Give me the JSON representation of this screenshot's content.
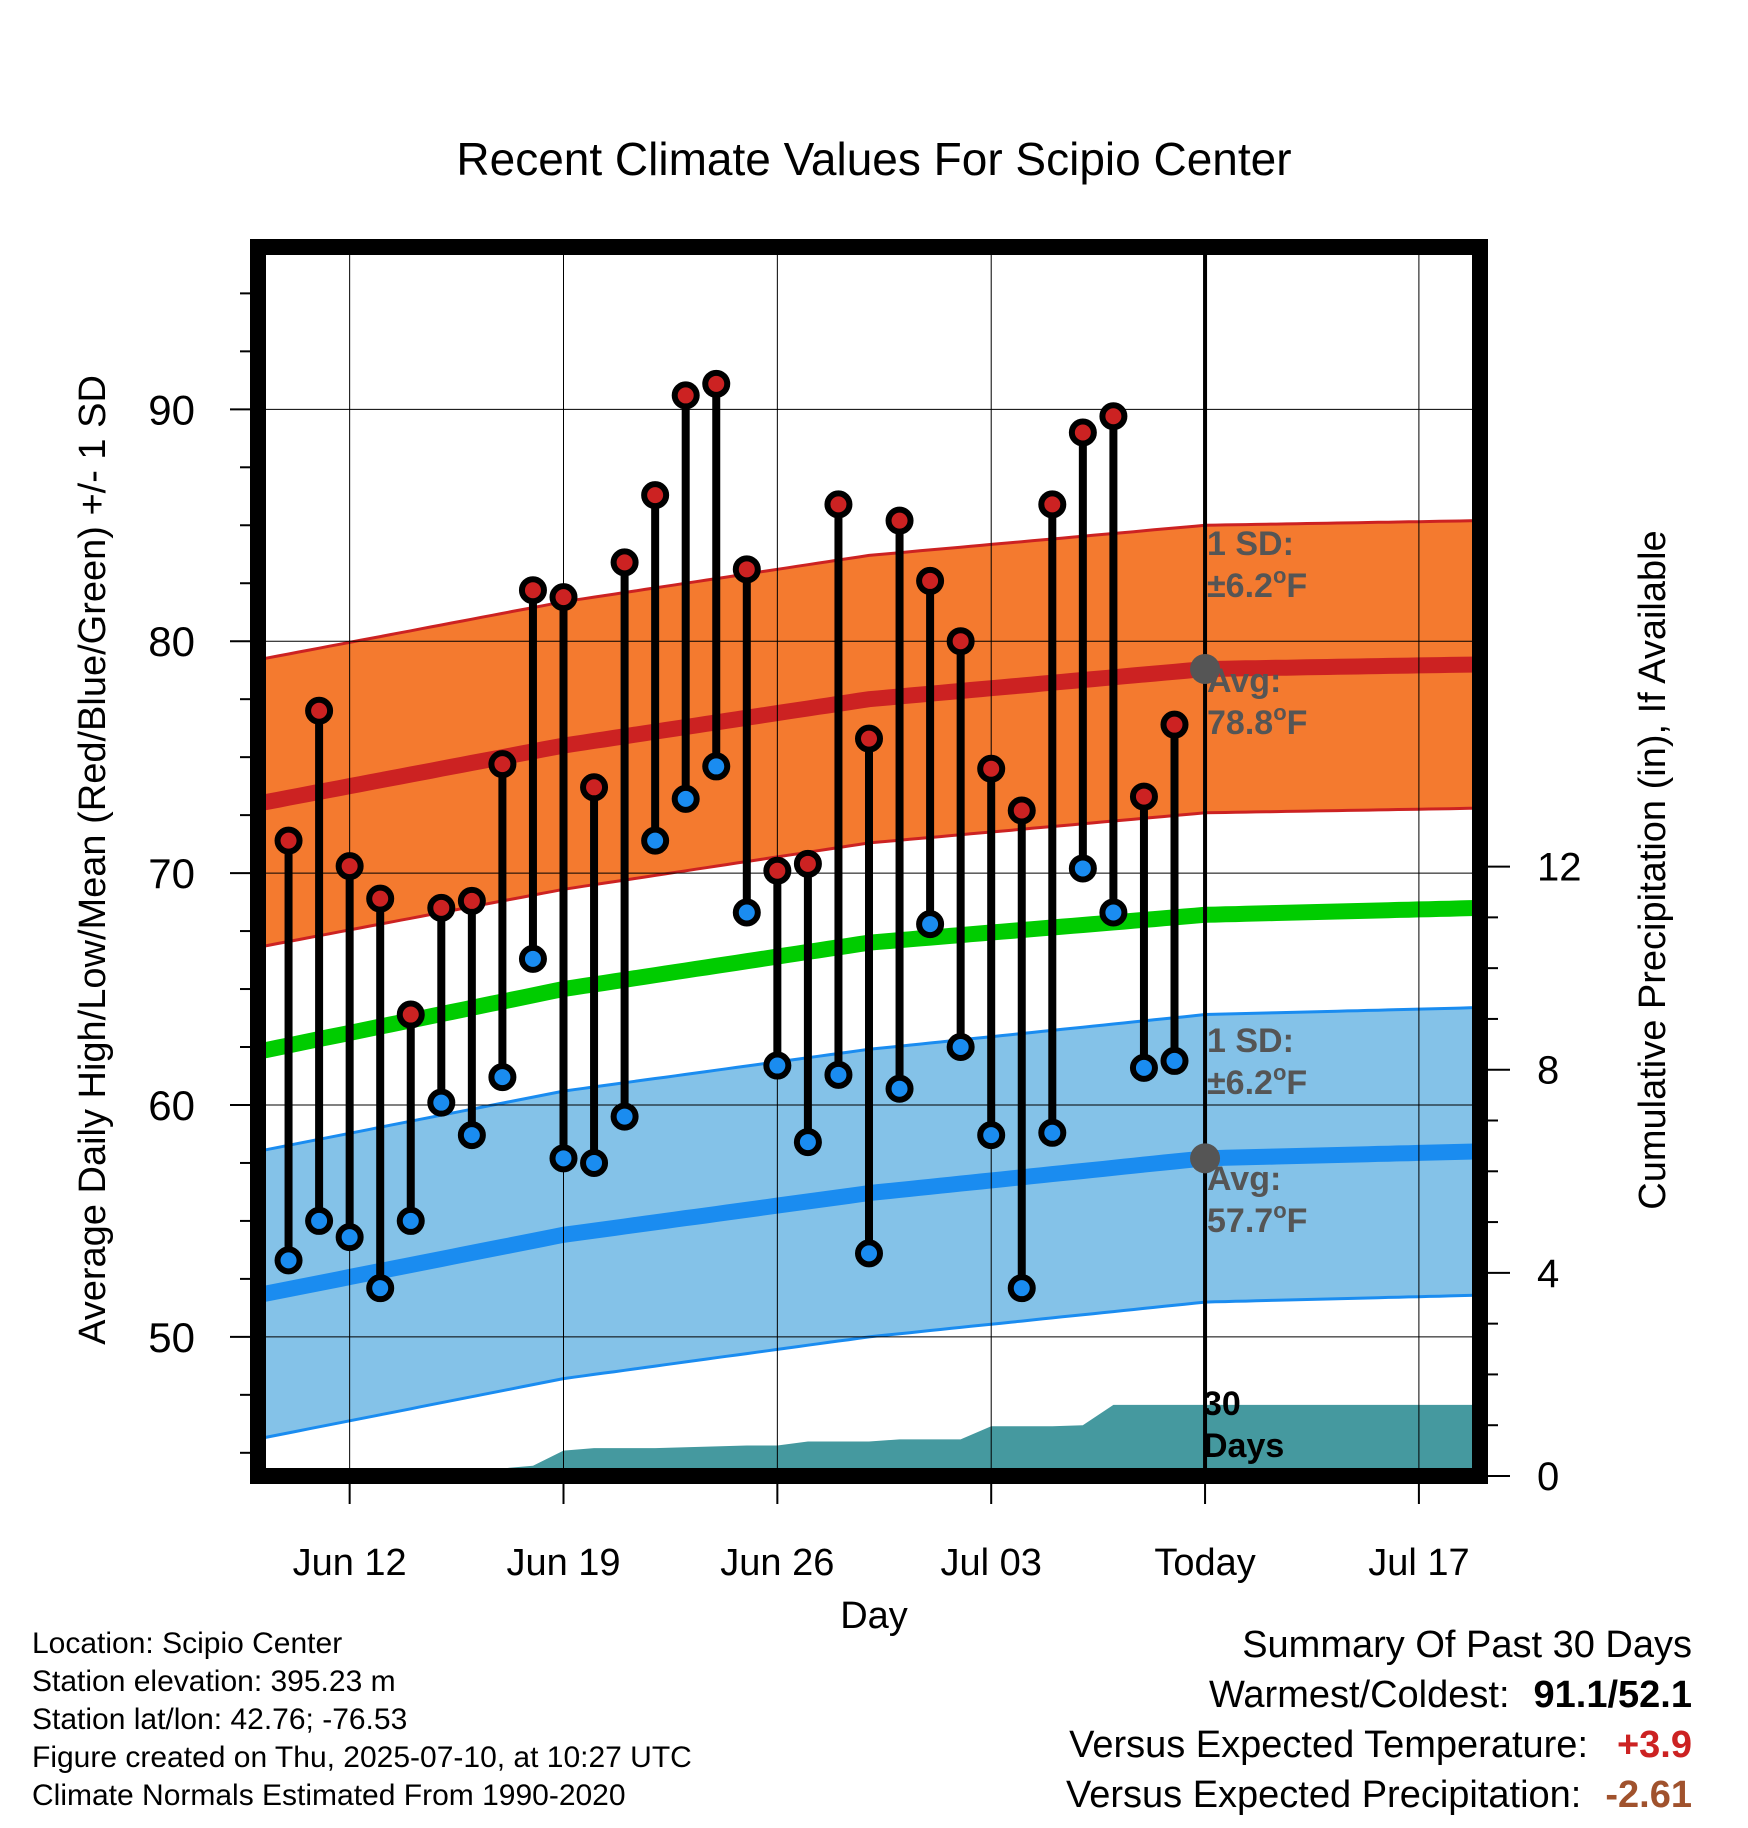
{
  "chart_data": {
    "type": "line",
    "title": "Recent Climate Values For Scipio Center",
    "xlabel": "Day",
    "ylabel": "Average Daily High/Low/Mean (Red/Blue/Green) +/- 1 SD",
    "y2label": "Cumulative Precipitation (in), If Available",
    "x_start_date": "2025-06-09",
    "x_tick_labels": [
      "Jun 12",
      "Jun 19",
      "Jun 26",
      "Jul 03",
      "Today",
      "Jul 17"
    ],
    "x_tick_dates": [
      "2025-06-12",
      "2025-06-19",
      "2025-06-26",
      "2025-07-03",
      "2025-07-10",
      "2025-07-17"
    ],
    "today_date": "2025-07-10",
    "x_end_date": "2025-07-19",
    "ylim": [
      44,
      97
    ],
    "y_tick_labels": [
      "50",
      "60",
      "70",
      "80",
      "90"
    ],
    "y2lim": [
      0,
      24.2
    ],
    "y2_tick_labels": [
      "0",
      "4",
      "8",
      "12"
    ],
    "grid": true,
    "normals": {
      "high_avg": [
        {
          "date": "2025-06-09",
          "value": 73.0
        },
        {
          "date": "2025-06-19",
          "value": 75.5
        },
        {
          "date": "2025-06-29",
          "value": 77.5
        },
        {
          "date": "2025-07-10",
          "value": 78.8
        },
        {
          "date": "2025-07-19",
          "value": 79.0
        }
      ],
      "high_sd": 6.2,
      "low_avg": [
        {
          "date": "2025-06-09",
          "value": 51.8
        },
        {
          "date": "2025-06-19",
          "value": 54.4
        },
        {
          "date": "2025-06-29",
          "value": 56.2
        },
        {
          "date": "2025-07-10",
          "value": 57.7
        },
        {
          "date": "2025-07-19",
          "value": 58.0
        }
      ],
      "low_sd": 6.2,
      "mean_avg": [
        {
          "date": "2025-06-09",
          "value": 62.3
        },
        {
          "date": "2025-06-19",
          "value": 65.0
        },
        {
          "date": "2025-06-29",
          "value": 67.0
        },
        {
          "date": "2025-07-10",
          "value": 68.2
        },
        {
          "date": "2025-07-19",
          "value": 68.5
        }
      ]
    },
    "observations": [
      {
        "date": "2025-06-10",
        "high": 71.4,
        "low": 53.3
      },
      {
        "date": "2025-06-11",
        "high": 77.0,
        "low": 55.0
      },
      {
        "date": "2025-06-12",
        "high": 70.3,
        "low": 54.3
      },
      {
        "date": "2025-06-13",
        "high": 68.9,
        "low": 52.1
      },
      {
        "date": "2025-06-14",
        "high": 63.9,
        "low": 55.0
      },
      {
        "date": "2025-06-15",
        "high": 68.5,
        "low": 60.1
      },
      {
        "date": "2025-06-16",
        "high": 68.8,
        "low": 58.7
      },
      {
        "date": "2025-06-17",
        "high": 74.7,
        "low": 61.2
      },
      {
        "date": "2025-06-18",
        "high": 82.2,
        "low": 66.3
      },
      {
        "date": "2025-06-19",
        "high": 81.9,
        "low": 57.7
      },
      {
        "date": "2025-06-20",
        "high": 73.7,
        "low": 57.5
      },
      {
        "date": "2025-06-21",
        "high": 83.4,
        "low": 59.5
      },
      {
        "date": "2025-06-22",
        "high": 86.3,
        "low": 71.4
      },
      {
        "date": "2025-06-23",
        "high": 90.6,
        "low": 73.2
      },
      {
        "date": "2025-06-24",
        "high": 91.1,
        "low": 74.6
      },
      {
        "date": "2025-06-25",
        "high": 83.1,
        "low": 68.3
      },
      {
        "date": "2025-06-26",
        "high": 70.1,
        "low": 61.7
      },
      {
        "date": "2025-06-27",
        "high": 70.4,
        "low": 58.4
      },
      {
        "date": "2025-06-28",
        "high": 85.9,
        "low": 61.3
      },
      {
        "date": "2025-06-29",
        "high": 75.8,
        "low": 53.6
      },
      {
        "date": "2025-06-30",
        "high": 85.2,
        "low": 60.7
      },
      {
        "date": "2025-07-01",
        "high": 82.6,
        "low": 67.8
      },
      {
        "date": "2025-07-02",
        "high": 80.0,
        "low": 62.5
      },
      {
        "date": "2025-07-03",
        "high": 74.5,
        "low": 58.7
      },
      {
        "date": "2025-07-04",
        "high": 72.7,
        "low": 52.1
      },
      {
        "date": "2025-07-05",
        "high": 85.9,
        "low": 58.8
      },
      {
        "date": "2025-07-06",
        "high": 89.0,
        "low": 70.2
      },
      {
        "date": "2025-07-07",
        "high": 89.7,
        "low": 68.3
      },
      {
        "date": "2025-07-08",
        "high": 73.3,
        "low": 61.6
      },
      {
        "date": "2025-07-09",
        "high": 76.4,
        "low": 61.9
      }
    ],
    "precip_cumulative": [
      {
        "date": "2025-06-09",
        "value": 0.0
      },
      {
        "date": "2025-06-12",
        "value": 0.0
      },
      {
        "date": "2025-06-13",
        "value": 0.15
      },
      {
        "date": "2025-06-17",
        "value": 0.15
      },
      {
        "date": "2025-06-18",
        "value": 0.2
      },
      {
        "date": "2025-06-19",
        "value": 0.5
      },
      {
        "date": "2025-06-20",
        "value": 0.55
      },
      {
        "date": "2025-06-22",
        "value": 0.55
      },
      {
        "date": "2025-06-25",
        "value": 0.6
      },
      {
        "date": "2025-06-26",
        "value": 0.6
      },
      {
        "date": "2025-06-27",
        "value": 0.68
      },
      {
        "date": "2025-06-29",
        "value": 0.68
      },
      {
        "date": "2025-06-30",
        "value": 0.72
      },
      {
        "date": "2025-07-02",
        "value": 0.72
      },
      {
        "date": "2025-07-03",
        "value": 0.98
      },
      {
        "date": "2025-07-05",
        "value": 0.98
      },
      {
        "date": "2025-07-06",
        "value": 1.0
      },
      {
        "date": "2025-07-07",
        "value": 1.4
      },
      {
        "date": "2025-07-19",
        "value": 1.4
      }
    ],
    "annotations": {
      "high_sd_label_1": "1 SD:",
      "high_sd_label_2": "±6.2",
      "high_sd_unit": "F",
      "high_avg_label_1": "Avg:",
      "high_avg_label_2": "78.8",
      "high_avg_unit": "F",
      "low_sd_label_1": "1 SD:",
      "low_sd_label_2": "±6.2",
      "low_sd_unit": "F",
      "low_avg_label_1": "Avg:",
      "low_avg_label_2": "57.7",
      "low_avg_unit": "F",
      "degree_symbol": "o",
      "days_label_1": "30",
      "days_label_2": "Days"
    },
    "colors": {
      "high_band": "#f47a2f",
      "high_line": "#cc2222",
      "low_band": "#84c2e8",
      "low_line": "#1a8cf0",
      "mean_line": "#00cc00",
      "precip": "#45999f",
      "marker_high": "#cc2222",
      "marker_low": "#1a8cf0",
      "today_marker": "#555555",
      "annotation_text": "#555555"
    }
  },
  "info": {
    "location": "Location: Scipio Center",
    "elevation": "Station elevation: 395.23 m",
    "latlon": "Station lat/lon: 42.76; -76.53",
    "created": "Figure created on Thu, 2025-07-10, at 10:27 UTC",
    "normals": "Climate Normals Estimated From 1990-2020"
  },
  "summary": {
    "title": "Summary Of Past 30 Days",
    "warm_cold_label": "Warmest/Coldest:",
    "warm_cold_value": "91.1/52.1",
    "temp_label": "Versus Expected Temperature:",
    "temp_value": "+3.9",
    "temp_color": "#cc2222",
    "precip_label": "Versus Expected Precipitation:",
    "precip_value": "-2.61",
    "precip_color": "#a0522d"
  }
}
